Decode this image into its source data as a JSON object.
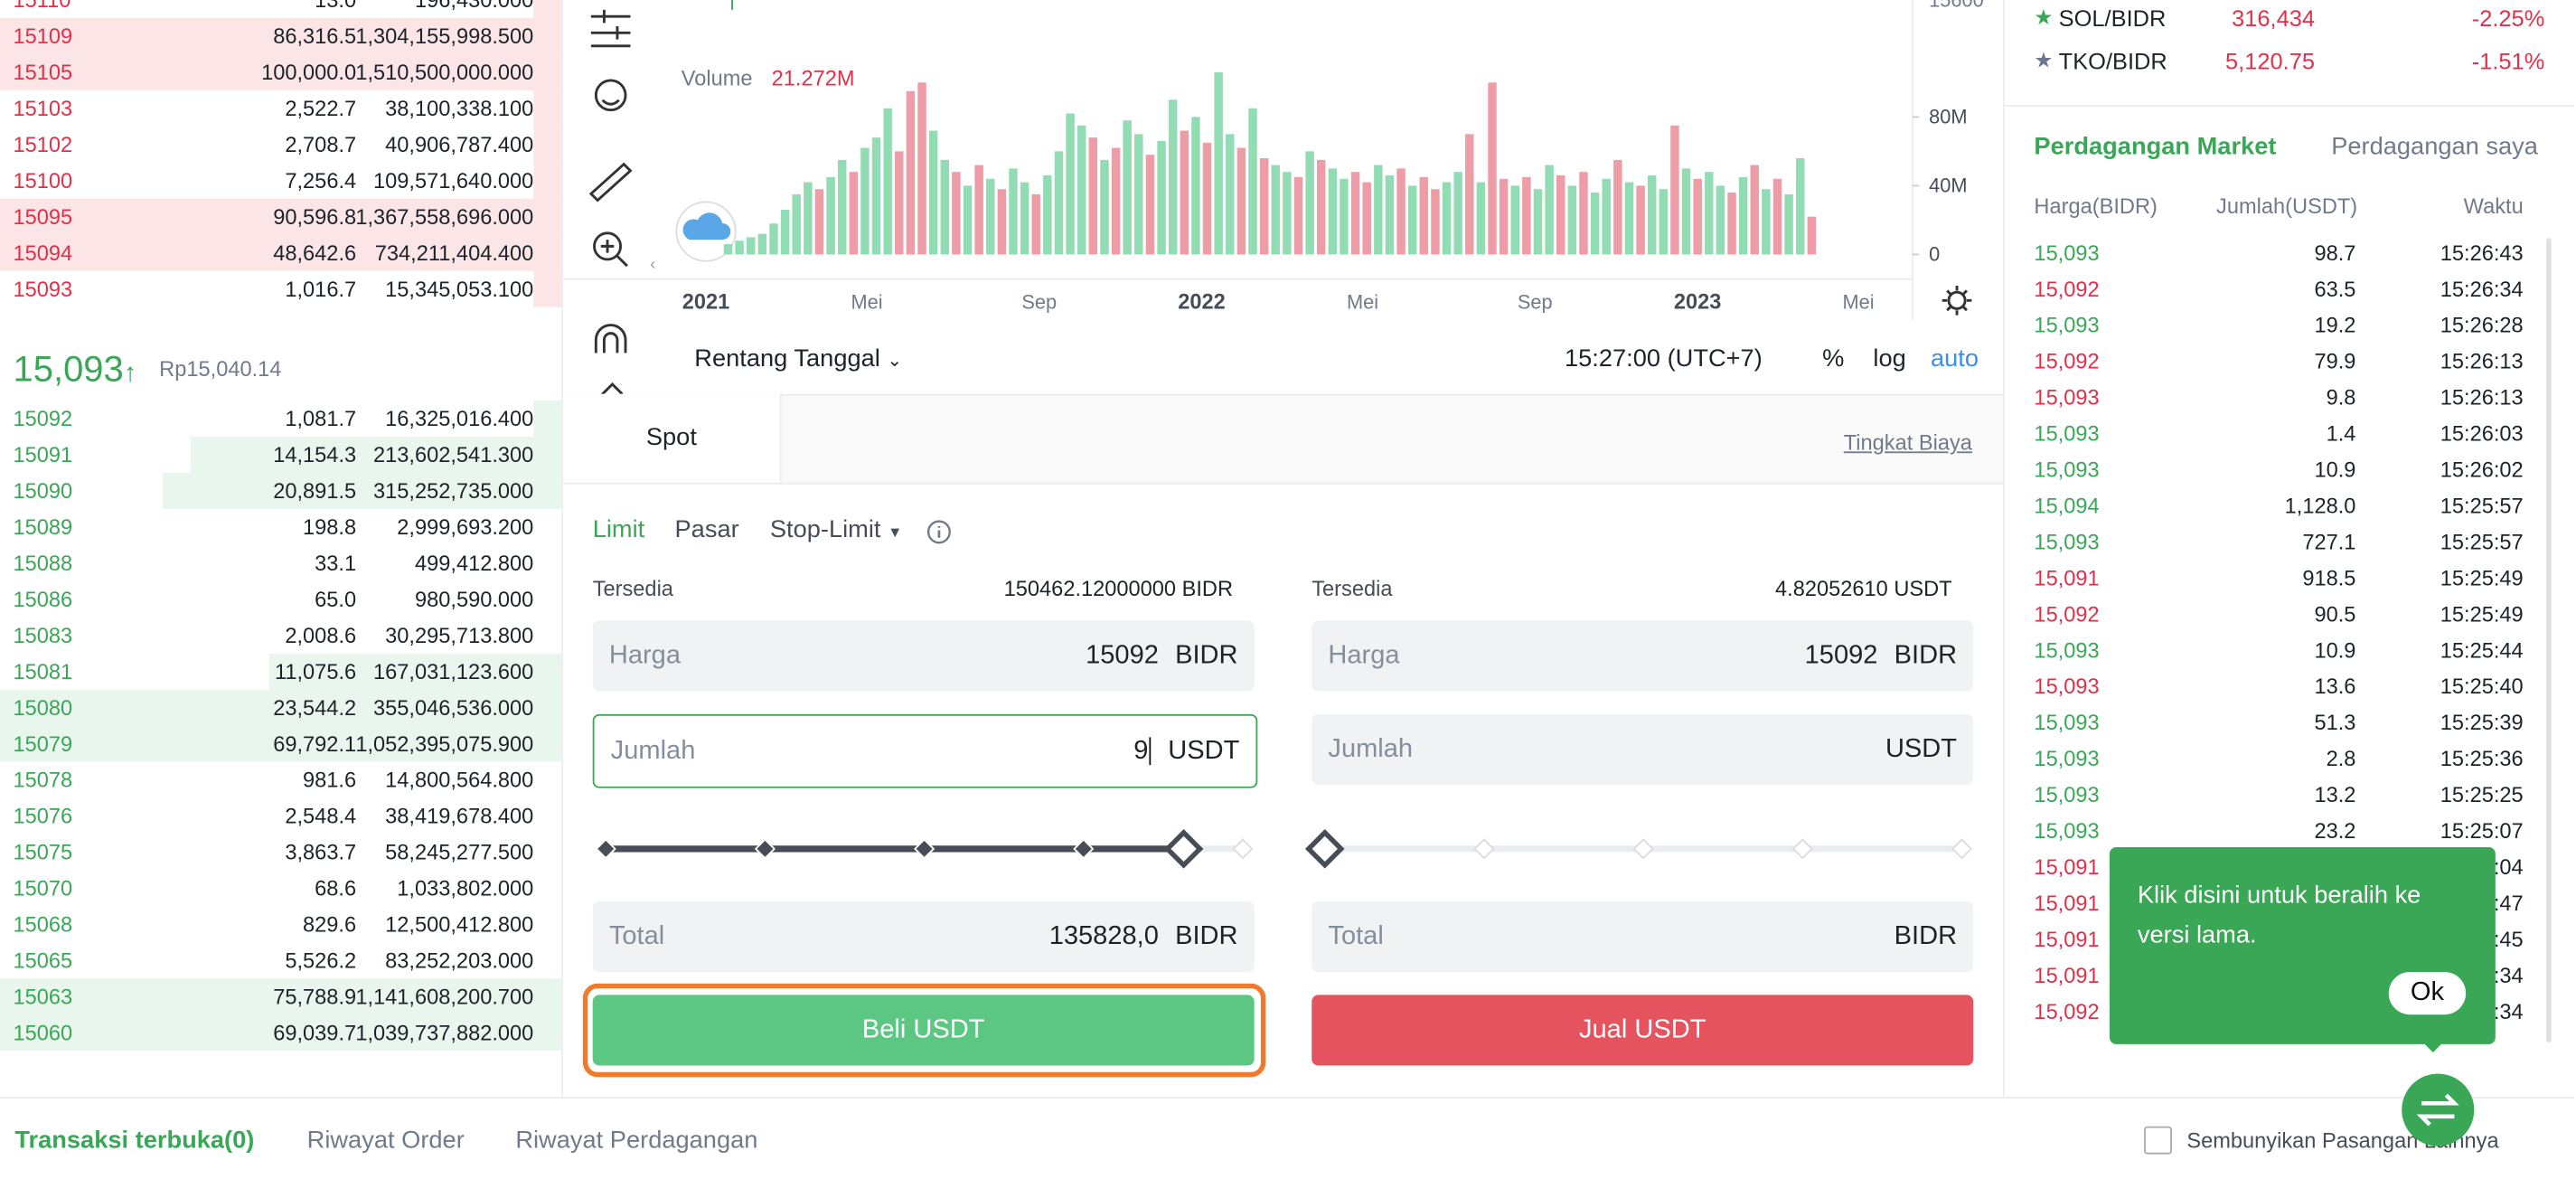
{
  "order_book": {
    "asks": [
      {
        "price": "15110",
        "amount": "13.0",
        "total": "196,430.000",
        "depth": 5
      },
      {
        "price": "15109",
        "amount": "86,316.5",
        "total": "1,304,155,998.500",
        "depth": 100
      },
      {
        "price": "15105",
        "amount": "100,000.0",
        "total": "1,510,500,000.000",
        "depth": 100
      },
      {
        "price": "15103",
        "amount": "2,522.7",
        "total": "38,100,338.100",
        "depth": 5
      },
      {
        "price": "15102",
        "amount": "2,708.7",
        "total": "40,906,787.400",
        "depth": 5
      },
      {
        "price": "15100",
        "amount": "7,256.4",
        "total": "109,571,640.000",
        "depth": 5
      },
      {
        "price": "15095",
        "amount": "90,596.8",
        "total": "1,367,558,696.000",
        "depth": 100
      },
      {
        "price": "15094",
        "amount": "48,642.6",
        "total": "734,211,404.400",
        "depth": 100
      },
      {
        "price": "15093",
        "amount": "1,016.7",
        "total": "15,345,053.100",
        "depth": 5
      }
    ],
    "last_price": "15,093",
    "fiat_price": "Rp15,040.14",
    "bids": [
      {
        "price": "15092",
        "amount": "1,081.7",
        "total": "16,325,016.400",
        "depth": 5
      },
      {
        "price": "15091",
        "amount": "14,154.3",
        "total": "213,602,541.300",
        "depth": 66
      },
      {
        "price": "15090",
        "amount": "20,891.5",
        "total": "315,252,735.000",
        "depth": 71
      },
      {
        "price": "15089",
        "amount": "198.8",
        "total": "2,999,693.200",
        "depth": 0
      },
      {
        "price": "15088",
        "amount": "33.1",
        "total": "499,412.800",
        "depth": 0
      },
      {
        "price": "15086",
        "amount": "65.0",
        "total": "980,590.000",
        "depth": 0
      },
      {
        "price": "15083",
        "amount": "2,008.6",
        "total": "30,295,713.800",
        "depth": 0
      },
      {
        "price": "15081",
        "amount": "11,075.6",
        "total": "167,031,123.600",
        "depth": 52
      },
      {
        "price": "15080",
        "amount": "23,544.2",
        "total": "355,046,536.000",
        "depth": 100
      },
      {
        "price": "15079",
        "amount": "69,792.1",
        "total": "1,052,395,075.900",
        "depth": 100
      },
      {
        "price": "15078",
        "amount": "981.6",
        "total": "14,800,564.800",
        "depth": 0
      },
      {
        "price": "15076",
        "amount": "2,548.4",
        "total": "38,419,678.400",
        "depth": 0
      },
      {
        "price": "15075",
        "amount": "3,863.7",
        "total": "58,245,277.500",
        "depth": 0
      },
      {
        "price": "15070",
        "amount": "68.6",
        "total": "1,033,802.000",
        "depth": 0
      },
      {
        "price": "15068",
        "amount": "829.6",
        "total": "12,500,412.800",
        "depth": 0
      },
      {
        "price": "15065",
        "amount": "5,526.2",
        "total": "83,252,203.000",
        "depth": 0
      },
      {
        "price": "15063",
        "amount": "75,788.9",
        "total": "1,141,608,200.700",
        "depth": 100
      },
      {
        "price": "15060",
        "amount": "69,039.7",
        "total": "1,039,737,882.000",
        "depth": 100
      }
    ]
  },
  "chart_data": {
    "type": "bar",
    "title": "Volume",
    "subtitle": "21.272M",
    "x_labels": [
      "2021",
      "Mei",
      "Sep",
      "2022",
      "Mei",
      "Sep",
      "2023",
      "Mei"
    ],
    "values": [
      6,
      8,
      10,
      12,
      18,
      26,
      35,
      42,
      38,
      45,
      55,
      48,
      62,
      68,
      85,
      60,
      95,
      100,
      72,
      55,
      48,
      40,
      52,
      44,
      38,
      50,
      42,
      35,
      46,
      60,
      82,
      75,
      68,
      55,
      62,
      78,
      70,
      58,
      66,
      90,
      72,
      80,
      65,
      106,
      70,
      62,
      85,
      56,
      52,
      48,
      45,
      60,
      55,
      50,
      44,
      48,
      42,
      52,
      46,
      50,
      40,
      45,
      38,
      42,
      48,
      70,
      42,
      100,
      44,
      40,
      45,
      38,
      52,
      46,
      40,
      48,
      36,
      44,
      55,
      42,
      40,
      46,
      38,
      75,
      50,
      44,
      48,
      40,
      36,
      45,
      52,
      38,
      44,
      35,
      56,
      22
    ],
    "rising": [
      true,
      true,
      true,
      true,
      true,
      true,
      true,
      true,
      false,
      true,
      true,
      false,
      true,
      true,
      true,
      false,
      false,
      false,
      true,
      true,
      false,
      true,
      false,
      true,
      false,
      true,
      true,
      false,
      true,
      true,
      true,
      true,
      false,
      true,
      false,
      true,
      true,
      false,
      true,
      true,
      false,
      true,
      false,
      true,
      true,
      false,
      true,
      false,
      true,
      true,
      false,
      true,
      false,
      true,
      true,
      false,
      false,
      true,
      true,
      false,
      true,
      false,
      false,
      true,
      true,
      false,
      true,
      false,
      false,
      true,
      false,
      true,
      true,
      false,
      true,
      false,
      true,
      true,
      false,
      true,
      false,
      true,
      true,
      false,
      true,
      false,
      true,
      true,
      false,
      true,
      false,
      true,
      false,
      true,
      true,
      false
    ],
    "color_up": "#92dcb4",
    "color_down": "#ee9ca6",
    "ylim": [
      0,
      148
    ],
    "yticks": [
      {
        "value": 0,
        "label": "0"
      },
      {
        "value": 40,
        "label": "40M"
      },
      {
        "value": 80,
        "label": "80M"
      }
    ],
    "price_axis_top": "15600"
  },
  "chart_toolbar": {
    "date_range": "Rentang Tanggal",
    "time": "15:27:00 (UTC+7)",
    "percent": "%",
    "log": "log",
    "auto": "auto"
  },
  "order_form": {
    "tab": "Spot",
    "fee_link": "Tingkat Biaya",
    "order_types": [
      "Limit",
      "Pasar",
      "Stop-Limit"
    ],
    "buy": {
      "available_label": "Tersedia",
      "available": "150462.12000000 BIDR",
      "price_label": "Harga",
      "price": "15092",
      "price_unit": "BIDR",
      "amount_label": "Jumlah",
      "amount": "9",
      "amount_unit": "USDT",
      "total_label": "Total",
      "total": "135828,0",
      "total_unit": "BIDR",
      "button": "Beli USDT"
    },
    "sell": {
      "available_label": "Tersedia",
      "available": "4.82052610 USDT",
      "price_label": "Harga",
      "price": "15092",
      "price_unit": "BIDR",
      "amount_label": "Jumlah",
      "amount_unit": "USDT",
      "total_label": "Total",
      "total_unit": "BIDR",
      "button": "Jual USDT"
    }
  },
  "markets": [
    {
      "pair": "SOL/BIDR",
      "price": "316,434",
      "change": "-2.25%"
    },
    {
      "pair": "TKO/BIDR",
      "price": "5,120.75",
      "change": "-1.51%"
    }
  ],
  "trades": {
    "tabs": [
      "Perdagangan Market",
      "Perdagangan saya"
    ],
    "headers": [
      "Harga(BIDR)",
      "Jumlah(USDT)",
      "Waktu"
    ],
    "rows": [
      {
        "price": "15,093",
        "amount": "98.7",
        "time": "15:26:43",
        "side": "buy"
      },
      {
        "price": "15,092",
        "amount": "63.5",
        "time": "15:26:34",
        "side": "sell"
      },
      {
        "price": "15,093",
        "amount": "19.2",
        "time": "15:26:28",
        "side": "buy"
      },
      {
        "price": "15,092",
        "amount": "79.9",
        "time": "15:26:13",
        "side": "sell"
      },
      {
        "price": "15,093",
        "amount": "9.8",
        "time": "15:26:13",
        "side": "sell"
      },
      {
        "price": "15,093",
        "amount": "1.4",
        "time": "15:26:03",
        "side": "buy"
      },
      {
        "price": "15,093",
        "amount": "10.9",
        "time": "15:26:02",
        "side": "buy"
      },
      {
        "price": "15,094",
        "amount": "1,128.0",
        "time": "15:25:57",
        "side": "buy"
      },
      {
        "price": "15,093",
        "amount": "727.1",
        "time": "15:25:57",
        "side": "buy"
      },
      {
        "price": "15,091",
        "amount": "918.5",
        "time": "15:25:49",
        "side": "sell"
      },
      {
        "price": "15,092",
        "amount": "90.5",
        "time": "15:25:49",
        "side": "sell"
      },
      {
        "price": "15,093",
        "amount": "10.9",
        "time": "15:25:44",
        "side": "buy"
      },
      {
        "price": "15,093",
        "amount": "13.6",
        "time": "15:25:40",
        "side": "sell"
      },
      {
        "price": "15,093",
        "amount": "51.3",
        "time": "15:25:39",
        "side": "buy"
      },
      {
        "price": "15,093",
        "amount": "2.8",
        "time": "15:25:36",
        "side": "buy"
      },
      {
        "price": "15,093",
        "amount": "13.2",
        "time": "15:25:25",
        "side": "buy"
      },
      {
        "price": "15,093",
        "amount": "23.2",
        "time": "15:25:07",
        "side": "buy"
      },
      {
        "price": "15,091",
        "time": ":04",
        "side": "sell"
      },
      {
        "price": "15,091",
        "time": ":47",
        "side": "sell"
      },
      {
        "price": "15,091",
        "time": ":45",
        "side": "sell"
      },
      {
        "price": "15,091",
        "time": ":34",
        "side": "sell"
      },
      {
        "price": "15,092",
        "time": ":34",
        "side": "sell"
      }
    ]
  },
  "tooltip": {
    "text": "Klik disini untuk beralih ke versi lama.",
    "button": "Ok"
  },
  "bottom": {
    "tabs": [
      "Transaksi terbuka(0)",
      "Riwayat Order",
      "Riwayat Perdagangan"
    ],
    "checkbox": "Sembunyikan Pasangan Lainnya"
  }
}
